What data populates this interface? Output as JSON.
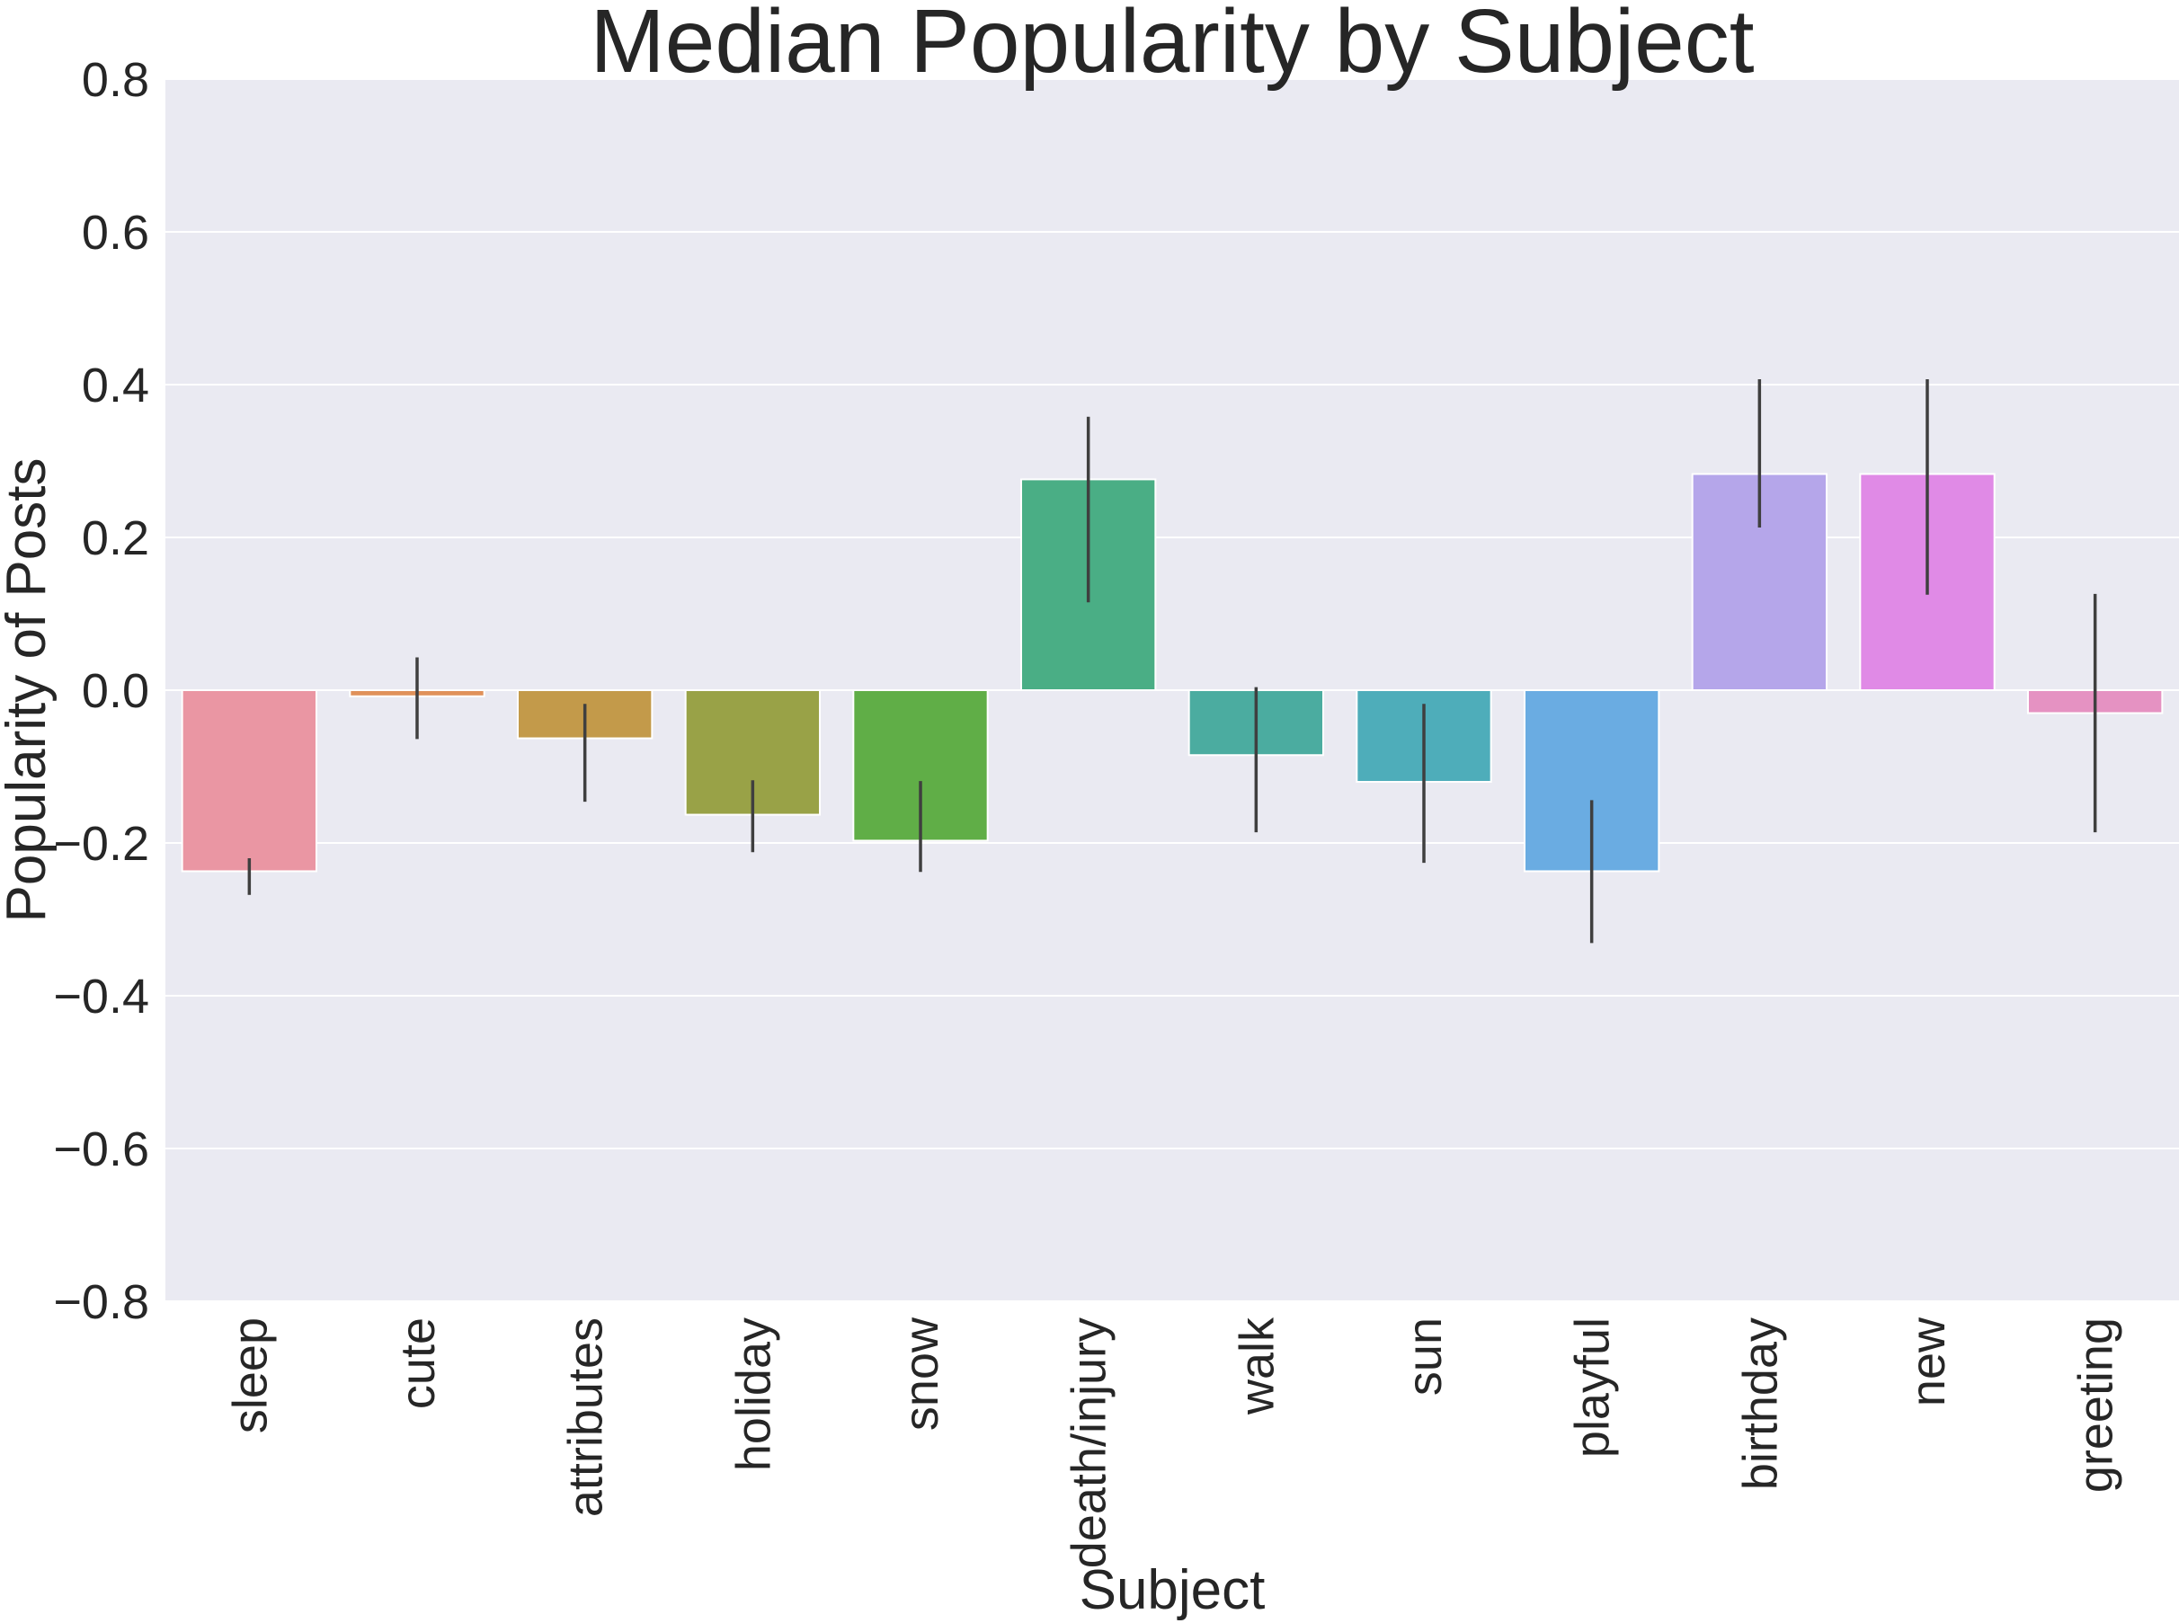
{
  "chart_data": {
    "type": "bar",
    "title": "Median Popularity by Subject",
    "xlabel": "Subject",
    "ylabel": "Popularity of Posts",
    "ylim": [
      -0.8,
      0.8
    ],
    "yticks": [
      0.8,
      0.6,
      0.4,
      0.2,
      0.0,
      -0.2,
      -0.4,
      -0.6,
      -0.8
    ],
    "ytick_labels": [
      "0.8",
      "0.6",
      "0.4",
      "0.2",
      "0.0",
      "−0.2",
      "−0.4",
      "−0.6",
      "−0.8"
    ],
    "categories": [
      "sleep",
      "cute",
      "attributes",
      "holiday",
      "snow",
      "death/injury",
      "walk",
      "sun",
      "playful",
      "birthday",
      "new",
      "greeting"
    ],
    "values": [
      -0.237,
      -0.008,
      -0.063,
      -0.163,
      -0.197,
      0.276,
      -0.085,
      -0.12,
      -0.237,
      0.283,
      0.283,
      -0.03
    ],
    "error_low": [
      -0.268,
      -0.064,
      -0.146,
      -0.212,
      -0.238,
      0.115,
      -0.186,
      -0.226,
      -0.331,
      0.213,
      0.125,
      -0.186
    ],
    "error_high": [
      -0.22,
      0.043,
      -0.018,
      -0.118,
      -0.119,
      0.358,
      0.004,
      -0.018,
      -0.144,
      0.407,
      0.407,
      0.126
    ],
    "colors": [
      "#ea96a3",
      "#e0915a",
      "#c39a4a",
      "#99a247",
      "#60ae47",
      "#4aae85",
      "#4baca0",
      "#4eadba",
      "#6aace2",
      "#b5a6ea",
      "#e08ae6",
      "#e592c2"
    ],
    "grid": true,
    "background": "#eaeaf2",
    "grid_color": "#ffffff",
    "error_color": "#3f3f3f"
  }
}
